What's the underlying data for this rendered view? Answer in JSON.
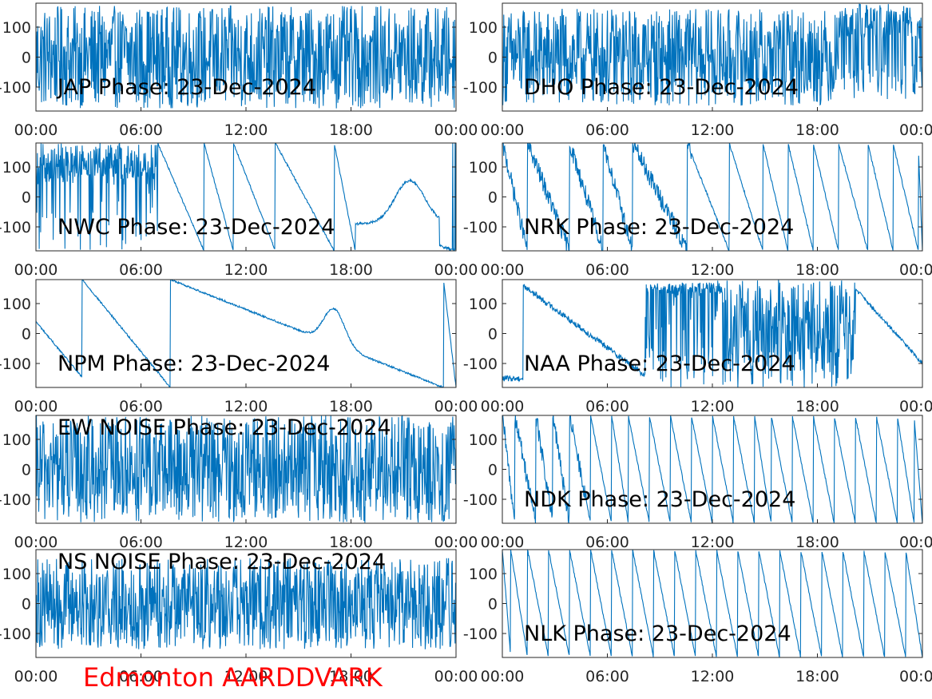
{
  "figure": {
    "footer": "Edmonton AARDDVARK",
    "footer_color": "#ff0000",
    "line_color": "#0072bd"
  },
  "chart_data": [
    {
      "type": "line",
      "title": "JAP Phase: 23-Dec-2024",
      "x_ticks": [
        "00:00",
        "06:00",
        "12:00",
        "18:00",
        "00:00"
      ],
      "y_ticks": [
        "100",
        "0",
        "-100"
      ],
      "ylim": [
        -180,
        180
      ],
      "pattern": "noise",
      "params": {
        "dens": 0.95
      }
    },
    {
      "type": "line",
      "title": "DHO Phase: 23-Dec-2024",
      "x_ticks": [
        "00:00",
        "06:00",
        "12:00",
        "18:00",
        "00:0"
      ],
      "y_ticks": [
        "100",
        "0",
        "-100"
      ],
      "ylim": [
        -180,
        180
      ],
      "pattern": "noise",
      "params": {
        "dens": 0.9,
        "upper_bias_after": 0.8
      }
    },
    {
      "type": "line",
      "title": "NWC Phase: 23-Dec-2024",
      "x_ticks": [
        "00:00",
        "06:00",
        "12:00",
        "18:00",
        "00:00"
      ],
      "y_ticks": [
        "100",
        "0",
        "-100"
      ],
      "ylim": [
        -180,
        180
      ],
      "pattern": "mixed",
      "params": {
        "noise_until": 0.29,
        "sawtooth_resets": [
          0.29,
          0.4,
          0.47,
          0.57,
          0.71
        ],
        "flatten_after": 0.76,
        "bump_at": 0.89,
        "bump_height": 60
      }
    },
    {
      "type": "line",
      "title": "NRK Phase: 23-Dec-2024",
      "x_ticks": [
        "00:00",
        "06:00",
        "12:00",
        "18:00",
        "00:0"
      ],
      "y_ticks": [
        "100",
        "0",
        "-100"
      ],
      "ylim": [
        -180,
        180
      ],
      "pattern": "sawtooth",
      "params": {
        "resets": [
          0.06,
          0.16,
          0.24,
          0.31,
          0.44,
          0.54,
          0.62,
          0.68,
          0.74,
          0.8,
          0.87,
          0.93,
          0.99
        ],
        "noisy_until": 0.45
      }
    },
    {
      "type": "line",
      "title": "NPM Phase: 23-Dec-2024",
      "x_ticks": [
        "00:00",
        "06:00",
        "12:00",
        "18:00",
        "00:00"
      ],
      "y_ticks": [
        "100",
        "0",
        "-100"
      ],
      "ylim": [
        -180,
        180
      ],
      "pattern": "npm",
      "params": {
        "resets": [
          0.11,
          0.32,
          0.97
        ],
        "bump_at": 0.71,
        "bump_height": 85
      }
    },
    {
      "type": "line",
      "title": "NAA Phase: 23-Dec-2024",
      "x_ticks": [
        "00:00",
        "06:00",
        "12:00",
        "18:00",
        "00:0"
      ],
      "y_ticks": [
        "100",
        "0",
        "-100"
      ],
      "ylim": [
        -180,
        180
      ],
      "pattern": "naa",
      "params": {
        "quiet_until": 0.34,
        "noise_from": 0.53,
        "noise_to": 0.84
      }
    },
    {
      "type": "line",
      "title": "EW NOISE Phase: 23-Dec-2024",
      "x_ticks": [
        "00:00",
        "06:00",
        "12:00",
        "18:00",
        "00:00"
      ],
      "y_ticks": [
        "100",
        "0",
        "-100"
      ],
      "ylim": [
        -180,
        180
      ],
      "pattern": "noise",
      "params": {
        "dens": 1.0
      }
    },
    {
      "type": "line",
      "title": "NDK Phase: 23-Dec-2024",
      "x_ticks": [
        "00:00",
        "06:00",
        "12:00",
        "18:00",
        "00:0"
      ],
      "y_ticks": [
        "100",
        "0",
        "-100"
      ],
      "ylim": [
        -180,
        180
      ],
      "pattern": "sawtooth",
      "params": {
        "resets": [
          0.03,
          0.08,
          0.12,
          0.16,
          0.21,
          0.26,
          0.3,
          0.35,
          0.4,
          0.45,
          0.5,
          0.55,
          0.6,
          0.64,
          0.69,
          0.74,
          0.79,
          0.84,
          0.89,
          0.94,
          0.98
        ],
        "noisy_until": 0.2
      }
    },
    {
      "type": "line",
      "title": "NS NOISE Phase: 23-Dec-2024",
      "x_ticks": [
        "00:00",
        "06:00",
        "12:00",
        "18:00",
        "00:00"
      ],
      "y_ticks": [
        "100",
        "0",
        "-100"
      ],
      "ylim": [
        -180,
        180
      ],
      "pattern": "noise",
      "params": {
        "dens": 0.85
      }
    },
    {
      "type": "line",
      "title": "NLK Phase: 23-Dec-2024",
      "x_ticks": [
        "00:00",
        "06:00",
        "12:00",
        "18:00",
        "00:0"
      ],
      "y_ticks": [
        "100",
        "0",
        "-100"
      ],
      "ylim": [
        -180,
        180
      ],
      "pattern": "sawtooth",
      "params": {
        "resets": [
          0.02,
          0.06,
          0.11,
          0.16,
          0.21,
          0.26,
          0.31,
          0.36,
          0.41,
          0.46,
          0.51,
          0.56,
          0.61,
          0.66,
          0.71,
          0.76,
          0.81,
          0.86,
          0.91,
          0.96
        ],
        "noisy_until": 0.0
      }
    }
  ]
}
